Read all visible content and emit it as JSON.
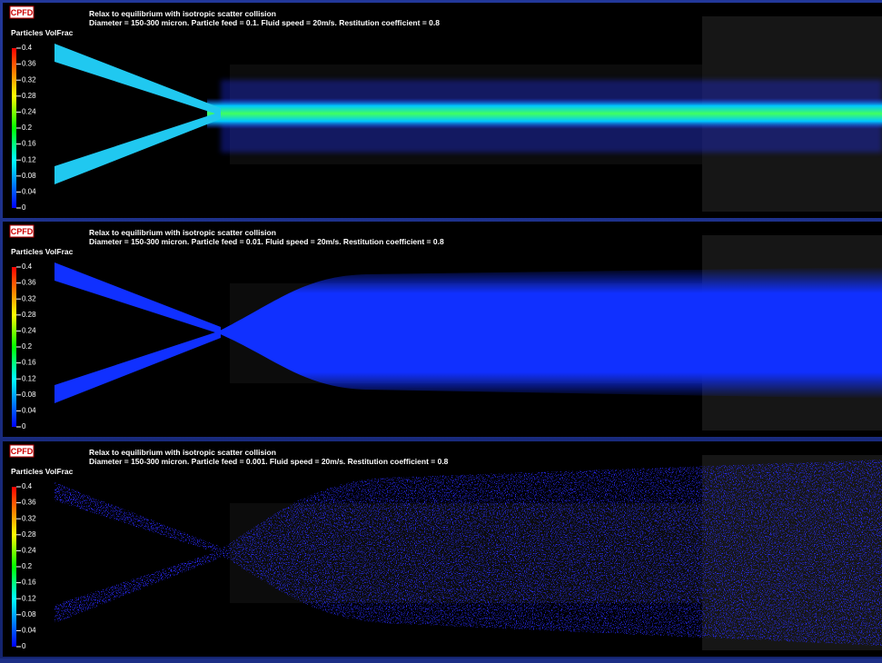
{
  "panels": [
    {
      "logo": "CPFD",
      "title": "Relax to equilibrium with isotropic scatter collision",
      "subtitle": "Diameter = 150-300 micron. Particle feed = 0.1. Fluid speed = 20m/s. Restitution coefficient = 0.8",
      "colorbar_label": "Particles VolFrac",
      "colorbar_ticks": [
        "0.4",
        "0.36",
        "0.32",
        "0.28",
        "0.24",
        "0.2",
        "0.16",
        "0.12",
        "0.08",
        "0.04",
        "0"
      ]
    },
    {
      "logo": "CPFD",
      "title": "Relax to equilibrium with isotropic scatter collision",
      "subtitle": "Diameter = 150-300 micron. Particle feed = 0.01. Fluid speed = 20m/s. Restitution coefficient = 0.8",
      "colorbar_label": "Particles VolFrac",
      "colorbar_ticks": [
        "0.4",
        "0.36",
        "0.32",
        "0.28",
        "0.24",
        "0.2",
        "0.16",
        "0.12",
        "0.08",
        "0.04",
        "0"
      ]
    },
    {
      "logo": "CPFD",
      "title": "Relax to equilibrium with isotropic scatter collision",
      "subtitle": "Diameter = 150-300 micron. Particle feed = 0.001. Fluid speed = 20m/s. Restitution coefficient = 0.8",
      "colorbar_label": "Particles VolFrac",
      "colorbar_ticks": [
        "0.4",
        "0.36",
        "0.32",
        "0.28",
        "0.24",
        "0.2",
        "0.16",
        "0.12",
        "0.08",
        "0.04",
        "0"
      ]
    }
  ]
}
